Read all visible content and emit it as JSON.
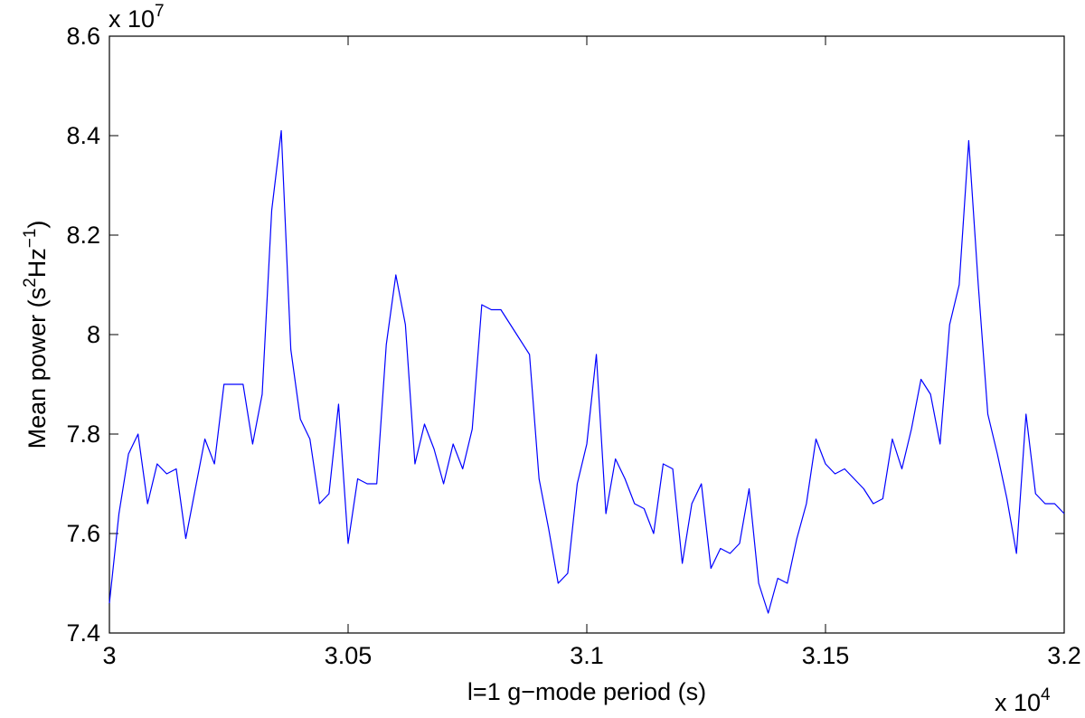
{
  "chart_data": {
    "type": "line",
    "xlabel": "l=1 g−mode period (s)",
    "x_multiplier": "x 10",
    "x_exponent": "4",
    "y_multiplier": "x 10",
    "y_exponent": "7",
    "ylabel_parts": [
      "Mean power (s",
      "2",
      "Hz",
      "−1",
      ")"
    ],
    "xlim": [
      3,
      3.2
    ],
    "xticks": [
      3,
      3.05,
      3.1,
      3.15,
      3.2
    ],
    "ylim": [
      7.4,
      8.6
    ],
    "yticks": [
      7.4,
      7.6,
      7.8,
      8,
      8.2,
      8.4,
      8.6
    ],
    "grid": false,
    "x": [
      3,
      3.002,
      3.004,
      3.006,
      3.008,
      3.01,
      3.012,
      3.014,
      3.016,
      3.018,
      3.02,
      3.022,
      3.024,
      3.026,
      3.028,
      3.03,
      3.032,
      3.034,
      3.036,
      3.038,
      3.04,
      3.042,
      3.044,
      3.046,
      3.048,
      3.05,
      3.052,
      3.054,
      3.056,
      3.058,
      3.06,
      3.062,
      3.064,
      3.066,
      3.068,
      3.07,
      3.072,
      3.074,
      3.076,
      3.078,
      3.08,
      3.082,
      3.084,
      3.086,
      3.088,
      3.09,
      3.092,
      3.094,
      3.096,
      3.098,
      3.1,
      3.102,
      3.104,
      3.106,
      3.108,
      3.11,
      3.112,
      3.114,
      3.116,
      3.118,
      3.12,
      3.122,
      3.124,
      3.126,
      3.128,
      3.13,
      3.132,
      3.134,
      3.136,
      3.138,
      3.14,
      3.142,
      3.144,
      3.146,
      3.148,
      3.15,
      3.152,
      3.154,
      3.156,
      3.158,
      3.16,
      3.162,
      3.164,
      3.166,
      3.168,
      3.17,
      3.172,
      3.174,
      3.176,
      3.178,
      3.18,
      3.182,
      3.184,
      3.186,
      3.188,
      3.19,
      3.192,
      3.194,
      3.196,
      3.198,
      3.2
    ],
    "series": [
      {
        "color": "#0000ff",
        "values": [
          7.46,
          7.64,
          7.76,
          7.8,
          7.66,
          7.74,
          7.72,
          7.73,
          7.59,
          7.69,
          7.79,
          7.74,
          7.9,
          7.9,
          7.9,
          7.78,
          7.88,
          8.25,
          8.41,
          7.97,
          7.83,
          7.79,
          7.66,
          7.68,
          7.86,
          7.58,
          7.71,
          7.7,
          7.7,
          7.98,
          8.12,
          8.02,
          7.74,
          7.82,
          7.77,
          7.7,
          7.78,
          7.73,
          7.81,
          8.06,
          8.05,
          8.05,
          8.02,
          7.99,
          7.96,
          7.71,
          7.61,
          7.5,
          7.52,
          7.7,
          7.78,
          7.96,
          7.64,
          7.75,
          7.71,
          7.66,
          7.65,
          7.6,
          7.74,
          7.73,
          7.54,
          7.66,
          7.7,
          7.53,
          7.57,
          7.56,
          7.58,
          7.69,
          7.5,
          7.44,
          7.51,
          7.5,
          7.59,
          7.66,
          7.79,
          7.74,
          7.72,
          7.73,
          7.71,
          7.69,
          7.66,
          7.67,
          7.79,
          7.73,
          7.81,
          7.91,
          7.88,
          7.78,
          8.02,
          8.1,
          8.39,
          8.1,
          7.84,
          7.76,
          7.67,
          7.56,
          7.84,
          7.68,
          7.66,
          7.66,
          7.64
        ]
      }
    ]
  }
}
